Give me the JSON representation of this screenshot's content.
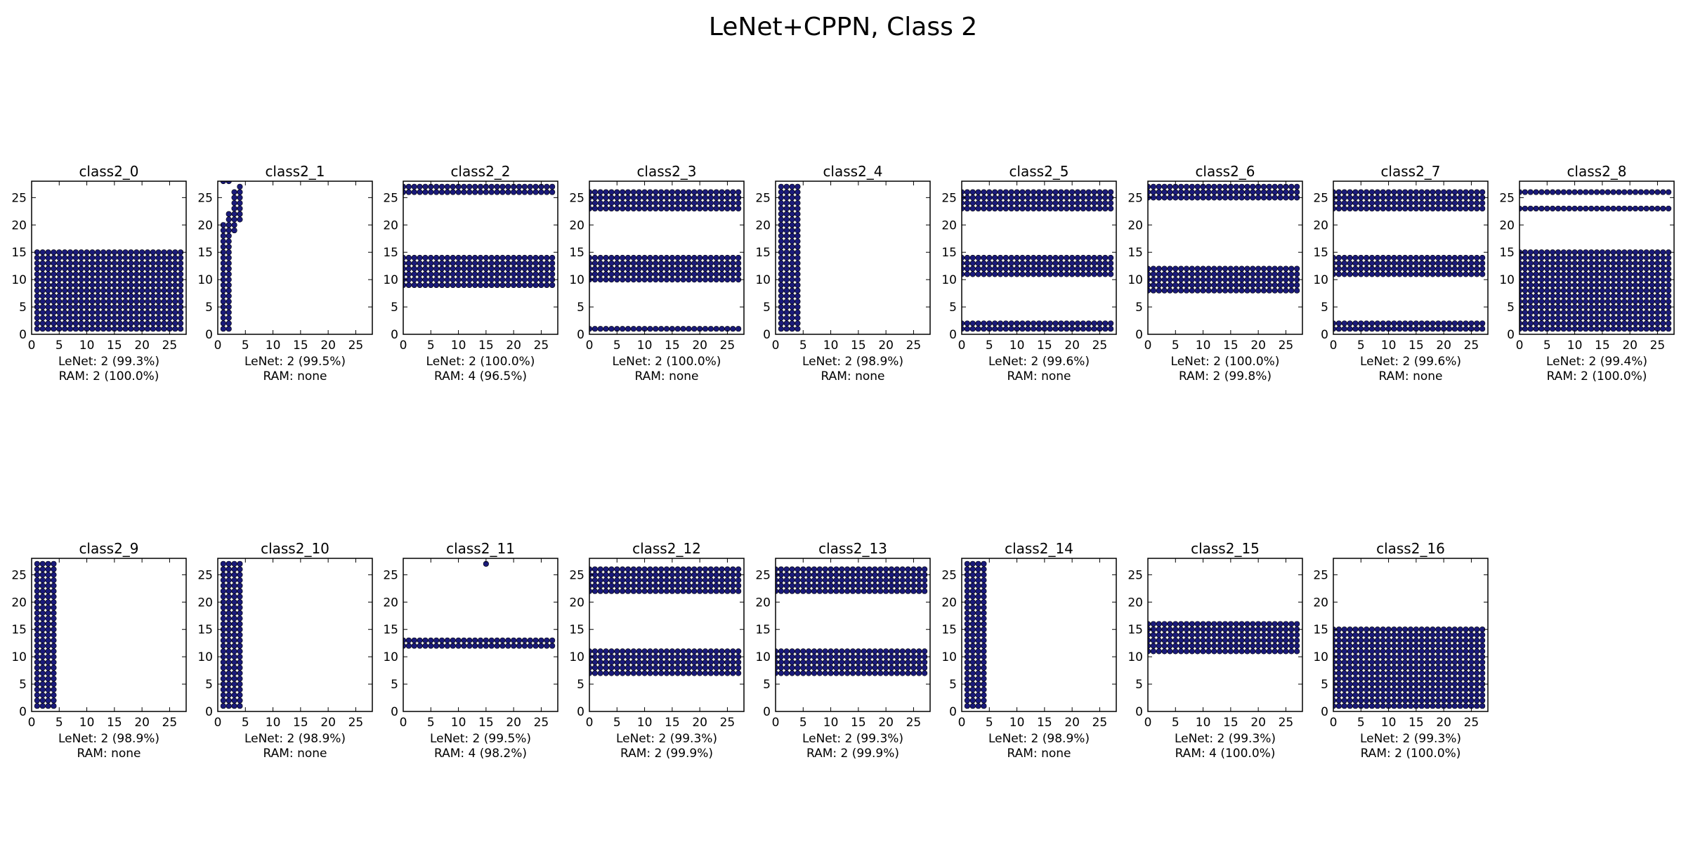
{
  "title": "LeNet+CPPN, Class 2",
  "colors": {
    "point": "#1a1a7a",
    "axes": "#000000",
    "background": "#ffffff"
  },
  "axis": {
    "xlim": [
      0,
      28
    ],
    "ylim": [
      0,
      28
    ],
    "xticks": [
      0,
      5,
      10,
      15,
      20,
      25
    ],
    "yticks": [
      0,
      5,
      10,
      15,
      20,
      25
    ]
  },
  "chart_data": [
    {
      "type": "scatter",
      "name": "class2_0",
      "lenet": "LeNet: 2 (99.3%)",
      "ram": "RAM: 2 (100.0%)",
      "fill_rows": [
        [
          1,
          15
        ]
      ],
      "fill_cols": [
        1,
        27
      ]
    },
    {
      "type": "scatter",
      "name": "class2_1",
      "lenet": "LeNet: 2 (99.5%)",
      "ram": "RAM: none",
      "col_spans": [
        [
          1,
          1,
          20
        ],
        [
          2,
          1,
          22
        ],
        [
          3,
          19,
          26
        ],
        [
          4,
          21,
          27
        ]
      ],
      "extra": [
        [
          1,
          28
        ],
        [
          2,
          28
        ]
      ]
    },
    {
      "type": "scatter",
      "name": "class2_2",
      "lenet": "LeNet: 2 (100.0%)",
      "ram": "RAM: 4 (96.5%)",
      "fill_rows": [
        [
          9,
          14
        ],
        [
          26,
          27
        ]
      ],
      "fill_cols": [
        0,
        27
      ]
    },
    {
      "type": "scatter",
      "name": "class2_3",
      "lenet": "LeNet: 2 (100.0%)",
      "ram": "RAM: none",
      "fill_rows": [
        [
          1,
          1
        ],
        [
          10,
          14
        ],
        [
          23,
          26
        ]
      ],
      "fill_cols": [
        0,
        27
      ]
    },
    {
      "type": "scatter",
      "name": "class2_4",
      "lenet": "LeNet: 2 (98.9%)",
      "ram": "RAM: none",
      "col_spans": [
        [
          1,
          1,
          27
        ],
        [
          2,
          1,
          27
        ],
        [
          3,
          1,
          27
        ],
        [
          4,
          1,
          27
        ]
      ]
    },
    {
      "type": "scatter",
      "name": "class2_5",
      "lenet": "LeNet: 2 (99.6%)",
      "ram": "RAM: none",
      "fill_rows": [
        [
          1,
          2
        ],
        [
          11,
          14
        ],
        [
          23,
          26
        ]
      ],
      "fill_cols": [
        0,
        27
      ]
    },
    {
      "type": "scatter",
      "name": "class2_6",
      "lenet": "LeNet: 2 (100.0%)",
      "ram": "RAM: 2 (99.8%)",
      "fill_rows": [
        [
          8,
          12
        ],
        [
          25,
          27
        ]
      ],
      "fill_cols": [
        0,
        27
      ]
    },
    {
      "type": "scatter",
      "name": "class2_7",
      "lenet": "LeNet: 2 (99.6%)",
      "ram": "RAM: none",
      "fill_rows": [
        [
          1,
          2
        ],
        [
          11,
          14
        ],
        [
          23,
          26
        ]
      ],
      "fill_cols": [
        0,
        27
      ]
    },
    {
      "type": "scatter",
      "name": "class2_8",
      "lenet": "LeNet: 2 (99.4%)",
      "ram": "RAM: 2 (100.0%)",
      "fill_rows": [
        [
          1,
          15
        ],
        [
          23,
          23
        ],
        [
          26,
          26
        ]
      ],
      "fill_cols": [
        0,
        27
      ]
    },
    {
      "type": "scatter",
      "name": "class2_9",
      "lenet": "LeNet: 2 (98.9%)",
      "ram": "RAM: none",
      "col_spans": [
        [
          1,
          1,
          27
        ],
        [
          2,
          1,
          27
        ],
        [
          3,
          1,
          27
        ],
        [
          4,
          1,
          27
        ]
      ]
    },
    {
      "type": "scatter",
      "name": "class2_10",
      "lenet": "LeNet: 2 (98.9%)",
      "ram": "RAM: none",
      "col_spans": [
        [
          1,
          1,
          27
        ],
        [
          2,
          1,
          27
        ],
        [
          3,
          1,
          27
        ],
        [
          4,
          1,
          27
        ]
      ]
    },
    {
      "type": "scatter",
      "name": "class2_11",
      "lenet": "LeNet: 2 (99.5%)",
      "ram": "RAM: 4 (98.2%)",
      "fill_rows": [
        [
          12,
          13
        ]
      ],
      "fill_cols": [
        0,
        27
      ],
      "extra": [
        [
          15,
          27
        ]
      ]
    },
    {
      "type": "scatter",
      "name": "class2_12",
      "lenet": "LeNet: 2 (99.3%)",
      "ram": "RAM: 2 (99.9%)",
      "fill_rows": [
        [
          7,
          11
        ],
        [
          22,
          26
        ]
      ],
      "fill_cols": [
        0,
        27
      ]
    },
    {
      "type": "scatter",
      "name": "class2_13",
      "lenet": "LeNet: 2 (99.3%)",
      "ram": "RAM: 2 (99.9%)",
      "fill_rows": [
        [
          7,
          11
        ],
        [
          22,
          26
        ]
      ],
      "fill_cols": [
        0,
        27
      ]
    },
    {
      "type": "scatter",
      "name": "class2_14",
      "lenet": "LeNet: 2 (98.9%)",
      "ram": "RAM: none",
      "col_spans": [
        [
          1,
          1,
          27
        ],
        [
          2,
          1,
          27
        ],
        [
          3,
          1,
          27
        ],
        [
          4,
          1,
          27
        ]
      ]
    },
    {
      "type": "scatter",
      "name": "class2_15",
      "lenet": "LeNet: 2 (99.3%)",
      "ram": "RAM: 4 (100.0%)",
      "fill_rows": [
        [
          11,
          16
        ]
      ],
      "fill_cols": [
        0,
        27
      ]
    },
    {
      "type": "scatter",
      "name": "class2_16",
      "lenet": "LeNet: 2 (99.3%)",
      "ram": "RAM: 2 (100.0%)",
      "fill_rows": [
        [
          1,
          15
        ]
      ],
      "fill_cols": [
        0,
        27
      ]
    }
  ]
}
